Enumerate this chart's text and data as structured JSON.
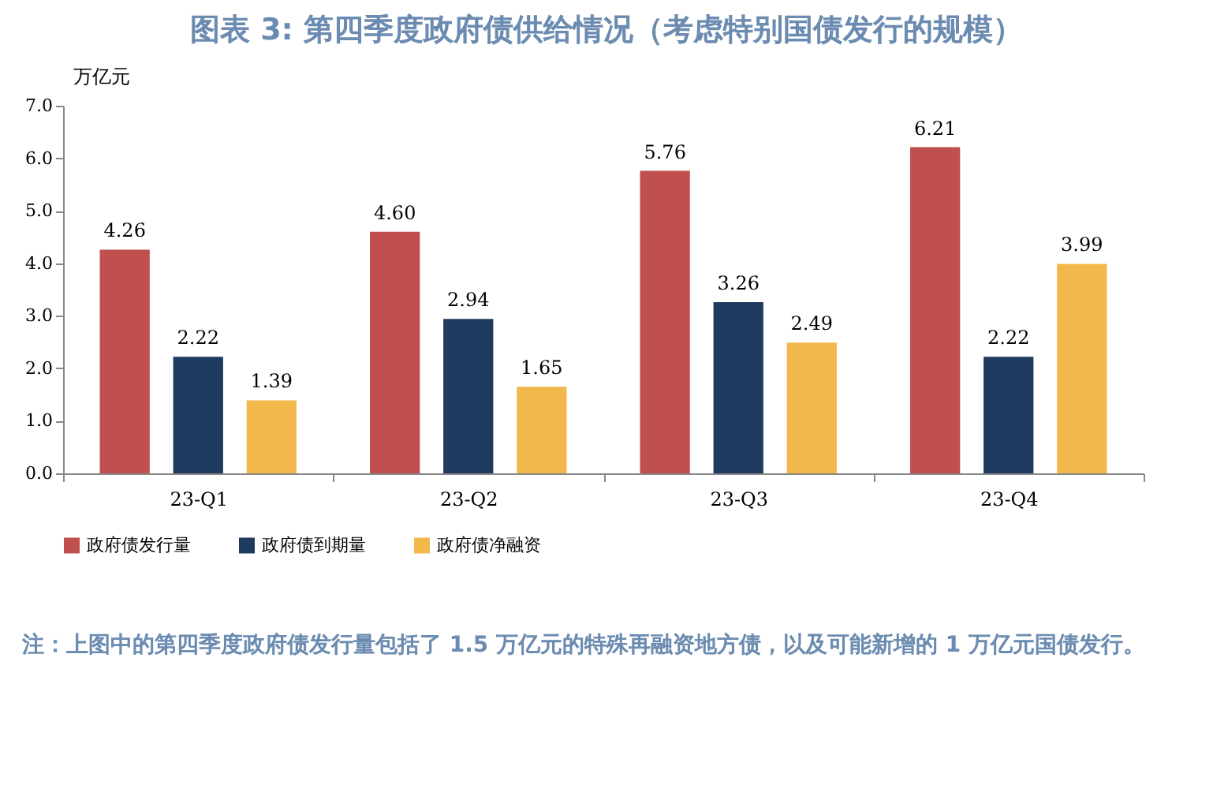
{
  "chart_data": {
    "type": "bar",
    "title": "图表 3:   第四季度政府债供给情况（考虑特别国债发行的规模）",
    "ylabel": "万亿元",
    "categories": [
      "23-Q1",
      "23-Q2",
      "23-Q3",
      "23-Q4"
    ],
    "series": [
      {
        "name": "政府债发行量",
        "color": "#c0504d",
        "values": [
          4.26,
          4.6,
          5.76,
          6.21
        ],
        "value_labels": [
          "4.26",
          "4.60",
          "5.76",
          "6.21"
        ]
      },
      {
        "name": "政府债到期量",
        "color": "#1f3a5f",
        "values": [
          2.22,
          2.94,
          3.26,
          2.22
        ],
        "value_labels": [
          "2.22",
          "2.94",
          "3.26",
          "2.22"
        ]
      },
      {
        "name": "政府债净融资",
        "color": "#f2b84b",
        "values": [
          1.39,
          1.65,
          2.49,
          3.99
        ],
        "value_labels": [
          "1.39",
          "1.65",
          "2.49",
          "3.99"
        ]
      }
    ],
    "ylim": [
      0,
      7
    ],
    "yticks": [
      {
        "value": 0,
        "label": "0.0"
      },
      {
        "value": 1,
        "label": "1.0"
      },
      {
        "value": 2,
        "label": "2.0"
      },
      {
        "value": 3,
        "label": "3.0"
      },
      {
        "value": 4,
        "label": "4.0"
      },
      {
        "value": 5,
        "label": "5.0"
      },
      {
        "value": 6,
        "label": "6.0"
      },
      {
        "value": 7,
        "label": "7.0"
      }
    ],
    "grid": false,
    "legend": "bottom",
    "annotations": [
      "注：上图中的第四季度政府债发行量包括了 1.5 万亿元的特殊再融资地方债，以及可能新增的 1 万亿元国债发行。"
    ]
  }
}
